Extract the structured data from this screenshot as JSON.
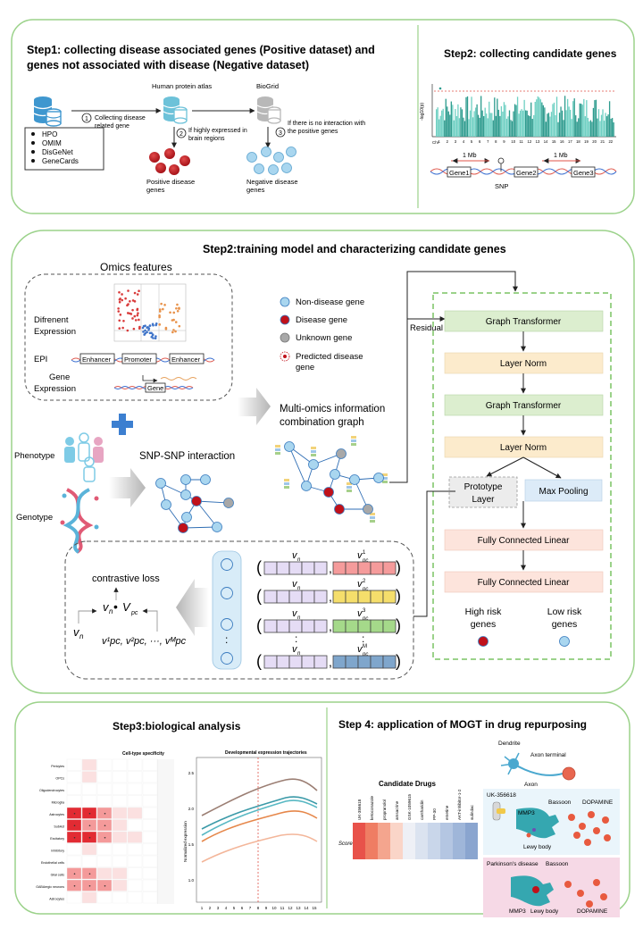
{
  "step1": {
    "title_line1": "Step1: collecting disease associated genes (Positive dataset) and",
    "title_line2": "genes not associated with disease (Negative dataset)",
    "databases": [
      "HPO",
      "OMIM",
      "DisGeNet",
      "GeneCards"
    ],
    "hpa_label": "Human protein atlas",
    "biogrid_label": "BioGrid",
    "arrow1_num": "1",
    "arrow1_label_line1": "Collecting disease",
    "arrow1_label_line2": "related gene",
    "arrow2_num": "2",
    "arrow2_label_line1": "If highly expressed in",
    "arrow2_label_line2": "brain regions",
    "arrow3_num": "3",
    "arrow3_label_line1": "If there is no interaction with",
    "arrow3_label_line2": "the positive genes",
    "positive_label_line1": "Positive disease",
    "positive_label_line2": "genes",
    "negative_label_line1": "Negative disease",
    "negative_label_line2": "genes"
  },
  "step2a": {
    "title": "Step2: collecting candidate genes",
    "manhattan_ylabel": "-log10(p)",
    "manhattan_chr": "Chr",
    "manhattan_ticks": [
      "1",
      "2",
      "3",
      "4",
      "5",
      "6",
      "7",
      "8",
      "9",
      "10",
      "11",
      "12",
      "13",
      "14",
      "15",
      "16",
      "17",
      "18",
      "19",
      "20",
      "21",
      "22"
    ],
    "mb_left": "1 Mb",
    "mb_right": "1 Mb",
    "gene1": "Gene1",
    "gene2": "Gene2",
    "gene3": "Gene3",
    "snp": "SNP"
  },
  "step2b": {
    "title": "Step2:training model and characterizing candidate genes",
    "omics_title": "Omics features",
    "diff_expr_line1": "Difrenent",
    "diff_expr_line2": "Expression",
    "epi_label": "EPI",
    "enhancer1": "Enhancer",
    "promoter": "Promoter",
    "enhancer2": "Enhancer",
    "gene_expr_line1": "Gene",
    "gene_expr_line2": "Expression",
    "gene_box": "Gene",
    "phenotype": "Phenotype",
    "genotype": "Genotype",
    "snp_snp": "SNP-SNP interaction",
    "legend": {
      "non_disease": "Non-disease gene",
      "disease": "Disease gene",
      "unknown": "Unknown gene",
      "predicted_line1": "Predicted disease",
      "predicted_line2": "gene"
    },
    "multi_omics_line1": "Multi-omics information",
    "multi_omics_line2": "combination graph",
    "residual": "Residual",
    "model_layers": [
      "Graph Transformer",
      "Layer Norm",
      "Graph Transformer",
      "Layer Norm"
    ],
    "prototype_line1": "Prototype",
    "prototype_line2": "Layer",
    "max_pooling": "Max Pooling",
    "fc1": "Fully Connected Linear",
    "fc2": "Fully Connected Linear",
    "high_risk_line1": "High risk",
    "high_risk_line2": "genes",
    "low_risk_line1": "Low risk",
    "low_risk_line2": "genes",
    "contrastive_loss": "contrastive loss",
    "vn": "v",
    "vn_sub": "n",
    "dot": "•",
    "vpc": "V",
    "vpc_sub": "pc",
    "proto_seq": "v¹pc, v²pc, ···, vᴹpc",
    "pair_sups": [
      "1",
      "2",
      "3",
      "M"
    ],
    "colon": ":"
  },
  "step3": {
    "title": "Step3:biological analysis",
    "heatmap_title": "Cell-type specificity",
    "heatmap_rows": [
      "Pericytes",
      "OPCs",
      "Oligodendrocytes",
      "Microglia",
      "Astrocytes",
      "SubAst",
      "Excitatory",
      "Inhibitory",
      "Endothelial cells",
      "Glial cells",
      "GABAergic neurons",
      "Astrocytes"
    ],
    "traj_title": "Developmental expression trajectories",
    "traj_ylabel": "Normalized expression",
    "traj_yticks": [
      "1.0",
      "1.5",
      "2.0",
      "2.5"
    ],
    "traj_xticks": [
      "1",
      "2",
      "3",
      "4",
      "5",
      "6",
      "7",
      "8",
      "9",
      "10",
      "11",
      "12",
      "13",
      "14",
      "15"
    ]
  },
  "step4": {
    "title": "Step 4: application of MOGT in drug repurposing",
    "candidate_drugs": "Candidate Drugs",
    "score": "Score",
    "drugs": [
      "UK-356618",
      "ketoconazole",
      "propranolol",
      "amsacrine",
      "GSK-1059615",
      "cantharidin",
      "PP-30",
      "emetine",
      "AKT-inhibitor-1-2",
      "sulindac"
    ],
    "dendrite": "Dendrite",
    "axon_terminal": "Axon terminal",
    "axon": "Axon",
    "uk_label": "UK-356618",
    "bassoon1": "Bassoon",
    "dopamine1": "DOPAMINE",
    "mmp3_1": "MMP3",
    "lewy1": "Lewy body",
    "pd_label": "Parkinson's disease",
    "bassoon2": "Bassoon",
    "mmp3_2": "MMP3",
    "lewy2": "Lewy body",
    "dopamine2": "DOPAMINE"
  },
  "colors": {
    "panel_border": "#9bd28a",
    "disease_red": "#c0111a",
    "nondisease_blue": "#a9d6ef",
    "unknown_gray": "#a8a8a8",
    "green_box": "#dceecf",
    "yellow_box": "#fcebcc",
    "blue_box": "#dcebf8",
    "pink_box": "#fde4dc",
    "teal": "#2f9c8f"
  }
}
